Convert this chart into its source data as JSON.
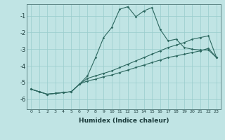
{
  "xlabel": "Humidex (Indice chaleur)",
  "bg_color": "#c0e4e4",
  "line_color": "#2d6860",
  "grid_color": "#99cccc",
  "xlim": [
    -0.5,
    23.5
  ],
  "ylim": [
    -6.6,
    -0.3
  ],
  "yticks": [
    -1,
    -2,
    -3,
    -4,
    -5,
    -6
  ],
  "xticks": [
    0,
    1,
    2,
    3,
    4,
    5,
    6,
    7,
    8,
    9,
    10,
    11,
    12,
    13,
    14,
    15,
    16,
    17,
    18,
    19,
    20,
    21,
    22,
    23
  ],
  "line1_x": [
    0,
    1,
    2,
    3,
    4,
    5,
    6,
    7,
    8,
    9,
    10,
    11,
    12,
    13,
    14,
    15,
    16,
    17,
    18,
    19,
    20,
    21,
    22,
    23
  ],
  "line1_y": [
    -5.4,
    -5.55,
    -5.7,
    -5.65,
    -5.6,
    -5.55,
    -5.1,
    -4.6,
    -3.5,
    -2.3,
    -1.7,
    -0.6,
    -0.45,
    -1.05,
    -0.7,
    -0.5,
    -1.8,
    -2.5,
    -2.4,
    -2.9,
    -3.0,
    -3.05,
    -3.05,
    -3.5
  ],
  "line2_x": [
    0,
    1,
    2,
    3,
    4,
    5,
    6,
    7,
    8,
    9,
    10,
    11,
    12,
    13,
    14,
    15,
    16,
    17,
    18,
    19,
    20,
    21,
    22,
    23
  ],
  "line2_y": [
    -5.4,
    -5.55,
    -5.7,
    -5.65,
    -5.6,
    -5.55,
    -5.1,
    -4.75,
    -4.6,
    -4.45,
    -4.3,
    -4.1,
    -3.9,
    -3.7,
    -3.5,
    -3.3,
    -3.1,
    -2.9,
    -2.75,
    -2.6,
    -2.4,
    -2.3,
    -2.2,
    -3.5
  ],
  "line3_x": [
    0,
    1,
    2,
    3,
    4,
    5,
    6,
    7,
    8,
    9,
    10,
    11,
    12,
    13,
    14,
    15,
    16,
    17,
    18,
    19,
    20,
    21,
    22,
    23
  ],
  "line3_y": [
    -5.4,
    -5.55,
    -5.7,
    -5.65,
    -5.6,
    -5.55,
    -5.1,
    -4.9,
    -4.8,
    -4.65,
    -4.55,
    -4.4,
    -4.25,
    -4.1,
    -3.95,
    -3.8,
    -3.65,
    -3.5,
    -3.4,
    -3.3,
    -3.2,
    -3.1,
    -2.95,
    -3.5
  ]
}
